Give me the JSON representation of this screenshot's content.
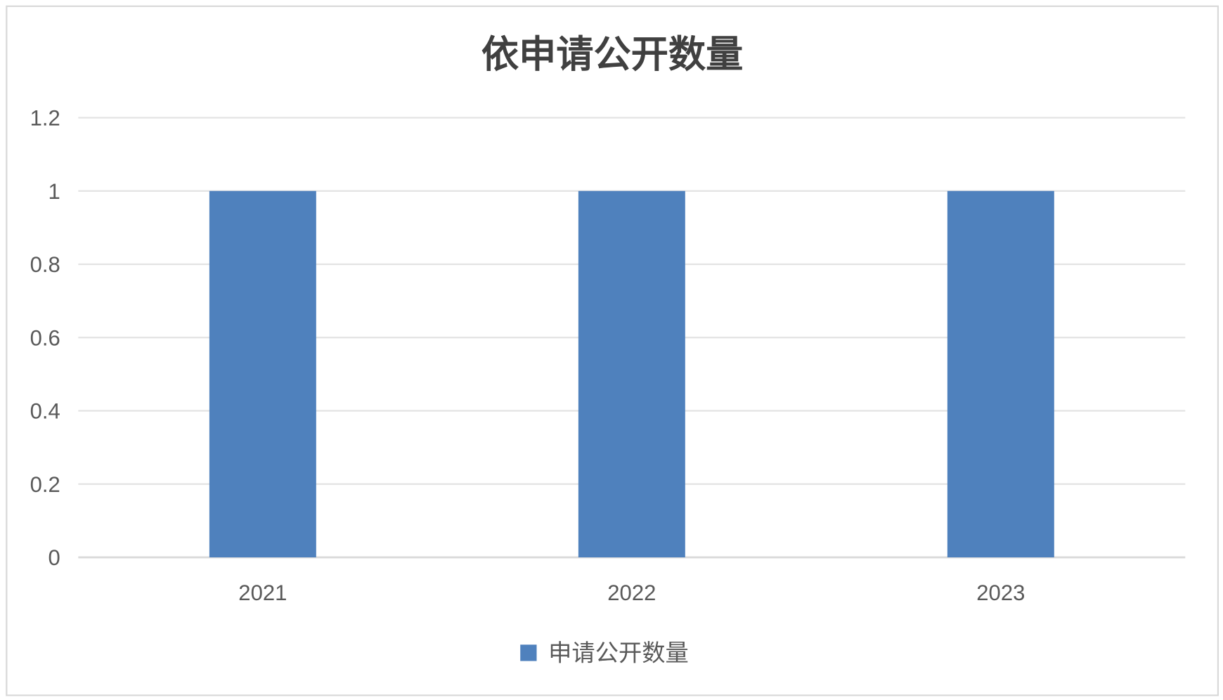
{
  "chart_data": {
    "type": "bar",
    "title": "依申请公开数量",
    "categories": [
      "2021",
      "2022",
      "2023"
    ],
    "series": [
      {
        "name": "申请公开数量",
        "values": [
          1,
          1,
          1
        ],
        "color": "#4f81bd"
      }
    ],
    "ylim": [
      0,
      1.2
    ],
    "yticks": [
      "0",
      "0.2",
      "0.4",
      "0.6",
      "0.8",
      "1",
      "1.2"
    ],
    "grid": true,
    "legend_position": "bottom"
  }
}
